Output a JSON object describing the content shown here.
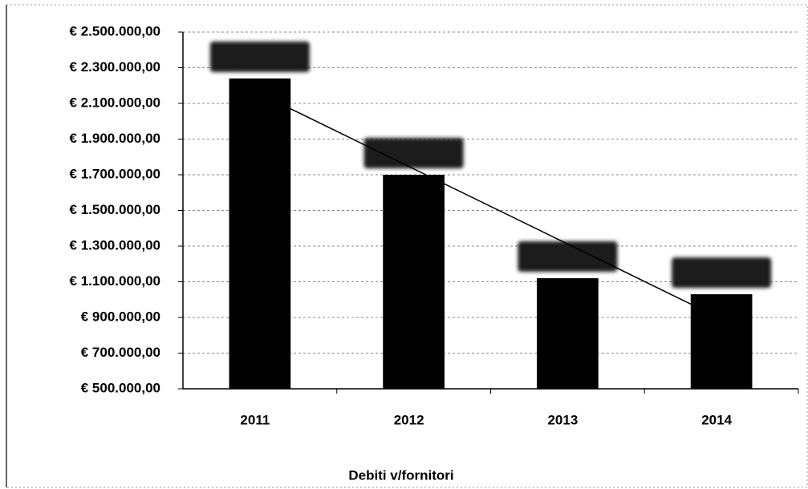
{
  "chart_data": {
    "type": "bar",
    "x_label": "Debiti v/fornitori",
    "categories": [
      "2011",
      "2012",
      "2013",
      "2014"
    ],
    "values": [
      2240000,
      1700000,
      1120000,
      1030000
    ],
    "color": "#000000",
    "trendline": "linear",
    "ylim": [
      500000,
      2500000
    ],
    "yticks": [
      {
        "value": 500000,
        "label": "€ 500.000,00"
      },
      {
        "value": 700000,
        "label": "€ 700.000,00"
      },
      {
        "value": 900000,
        "label": "€ 900.000,00"
      },
      {
        "value": 1100000,
        "label": "€ 1.100.000,00"
      },
      {
        "value": 1300000,
        "label": "€ 1.300.000,00"
      },
      {
        "value": 1500000,
        "label": "€ 1.500.000,00"
      },
      {
        "value": 1700000,
        "label": "€ 1.700.000,00"
      },
      {
        "value": 1900000,
        "label": "€ 1.900.000,00"
      },
      {
        "value": 2100000,
        "label": "€ 2.100.000,00"
      },
      {
        "value": 2300000,
        "label": "€ 2.300.000,00"
      },
      {
        "value": 2500000,
        "label": "€ 2.500.000,00"
      }
    ],
    "grid": true
  }
}
